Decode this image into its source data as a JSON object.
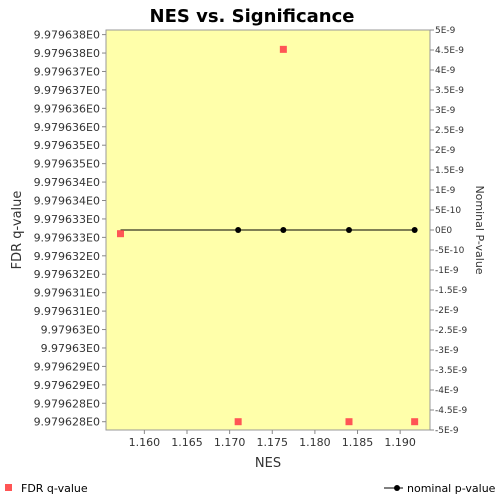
{
  "chart_data": {
    "type": "scatter",
    "title": "NES vs. Significance",
    "xlabel": "NES",
    "ylabel_left": "FDR q-value",
    "ylabel_right": "Nominal P-value",
    "x_ticks": [
      "1.160",
      "1.165",
      "1.170",
      "1.175",
      "1.180",
      "1.185",
      "1.190"
    ],
    "x_tick_values": [
      1.16,
      1.165,
      1.17,
      1.175,
      1.18,
      1.185,
      1.19
    ],
    "xlim": [
      1.1555,
      1.1935
    ],
    "left_ticks": [
      "9.979638E0",
      "9.979638E0",
      "9.979637E0",
      "9.979637E0",
      "9.979636E0",
      "9.979636E0",
      "9.979635E0",
      "9.979635E0",
      "9.979634E0",
      "9.979634E0",
      "9.979633E0",
      "9.979633E0",
      "9.979632E0",
      "9.979632E0",
      "9.979631E0",
      "9.979631E0",
      "9.97963E0",
      "9.97963E0",
      "9.979629E0",
      "9.979629E0",
      "9.979628E0",
      "9.979628E0"
    ],
    "left_tick_values": [
      9.9796385,
      9.979638,
      9.9796375,
      9.979637,
      9.9796365,
      9.979636,
      9.9796355,
      9.979635,
      9.9796345,
      9.979634,
      9.9796335,
      9.979633,
      9.9796325,
      9.979632,
      9.9796315,
      9.979631,
      9.9796305,
      9.97963,
      9.9796295,
      9.979629,
      9.9796285,
      9.979628
    ],
    "left_ylim": [
      9.979627775,
      9.979638625
    ],
    "right_ticks": [
      "5E-9",
      "4.5E-9",
      "4E-9",
      "3.5E-9",
      "3E-9",
      "2.5E-9",
      "2E-9",
      "1.5E-9",
      "1E-9",
      "5E-10",
      "0E0",
      "-5E-10",
      "-1E-9",
      "-1.5E-9",
      "-2E-9",
      "-2.5E-9",
      "-3E-9",
      "-3.5E-9",
      "-4E-9",
      "-4.5E-9",
      "-5E-9"
    ],
    "right_tick_values": [
      5e-09,
      4.5e-09,
      4e-09,
      3.5e-09,
      3e-09,
      2.5e-09,
      2e-09,
      1.5e-09,
      1e-09,
      5e-10,
      0,
      -5e-10,
      -1e-09,
      -1.5e-09,
      -2e-09,
      -2.5e-09,
      -3e-09,
      -3.5e-09,
      -4e-09,
      -4.5e-09,
      -5e-09
    ],
    "right_ylim": [
      -5e-09,
      5e-09
    ],
    "series": [
      {
        "name": "FDR q-value",
        "axis": "left",
        "marker": "square",
        "color": "#ff5555",
        "points": [
          {
            "x": 1.1572,
            "y": 9.9796331
          },
          {
            "x": 1.171,
            "y": 9.979628
          },
          {
            "x": 1.1763,
            "y": 9.9796381
          },
          {
            "x": 1.184,
            "y": 9.979628
          },
          {
            "x": 1.1917,
            "y": 9.979628
          }
        ]
      },
      {
        "name": "nominal p-value",
        "axis": "right",
        "marker": "circle-line",
        "color": "#000000",
        "points": [
          {
            "x": 1.1572,
            "y": 0
          },
          {
            "x": 1.171,
            "y": 0
          },
          {
            "x": 1.1763,
            "y": 0
          },
          {
            "x": 1.184,
            "y": 0
          },
          {
            "x": 1.1917,
            "y": 0
          }
        ]
      }
    ],
    "plot_background": "#ffffaa",
    "grid": false,
    "legend": [
      {
        "label": "FDR q-value",
        "position": "bottom-left"
      },
      {
        "label": "nominal p-value",
        "position": "bottom-right"
      }
    ]
  }
}
